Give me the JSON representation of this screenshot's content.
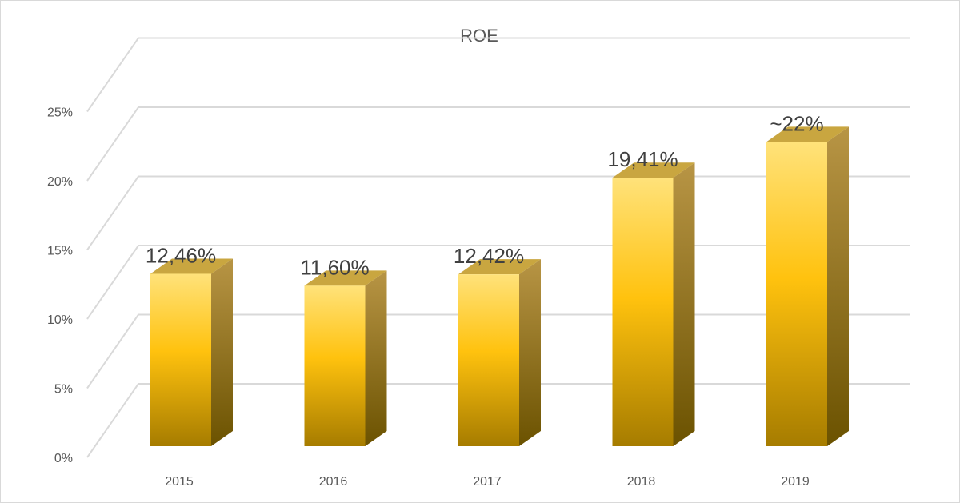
{
  "chart_data": {
    "type": "bar",
    "title": "ROE",
    "categories": [
      "2015",
      "2016",
      "2017",
      "2018",
      "2019"
    ],
    "values": [
      12.46,
      11.6,
      12.42,
      19.41,
      22
    ],
    "data_labels": [
      "12,46%",
      "11,60%",
      "12,42%",
      "19,41%",
      "~22%"
    ],
    "y_tick_labels": [
      "0%",
      "5%",
      "10%",
      "15%",
      "20%",
      "25%"
    ],
    "y_ticks": [
      0,
      5,
      10,
      15,
      20,
      25
    ],
    "ylim": [
      0,
      25
    ],
    "xlabel": "",
    "ylabel": "",
    "grid": true,
    "style": "3d-column",
    "colors": {
      "bar_light": "#ffe27a",
      "bar_mid": "#ffc20e",
      "bar_dark": "#a67c00",
      "bar_side": "#8a6a10",
      "bar_top": "#c9a640",
      "gridline": "#d9d9d9",
      "axis_text": "#595959",
      "label_text": "#404040"
    }
  }
}
